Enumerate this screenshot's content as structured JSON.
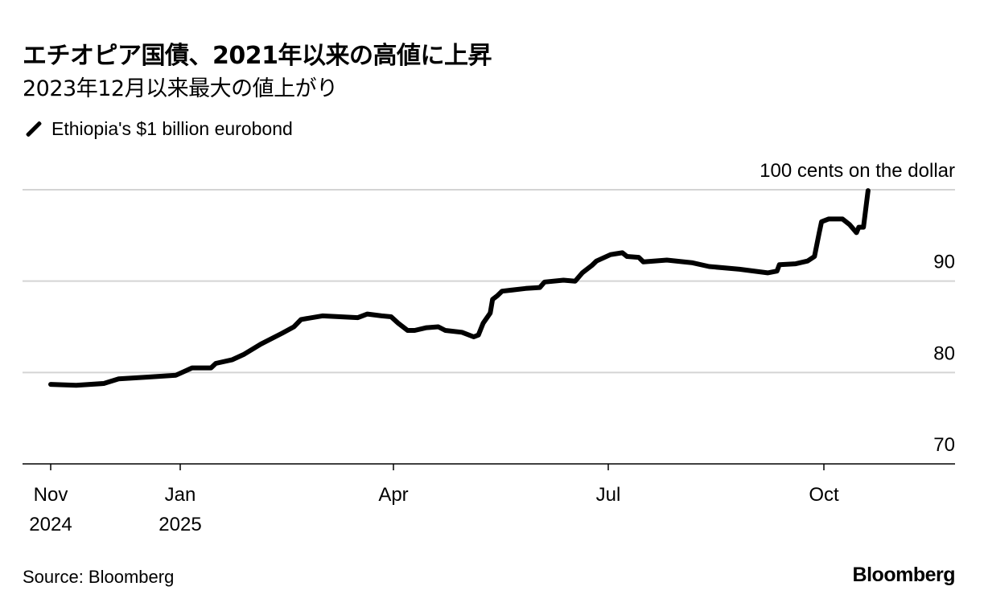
{
  "title": "エチオピア国債、2021年以来の高値に上昇",
  "subtitle": "2023年12月以来最大の値上がり",
  "source": "Source: Bloomberg",
  "logo": "Bloomberg",
  "chart_data": {
    "type": "line",
    "title": "エチオピア国債、2021年以来の高値に上昇",
    "subtitle": "2023年12月以来最大の値上がり",
    "ylabel": "100 cents on the dollar",
    "ylim": [
      70,
      100
    ],
    "yticks": [
      {
        "value": 100,
        "label": "100 cents on the dollar"
      },
      {
        "value": 90,
        "label": "90"
      },
      {
        "value": 80,
        "label": "80"
      },
      {
        "value": 70,
        "label": "70"
      }
    ],
    "xticks": [
      {
        "date": "2024-11-01",
        "label": "Nov",
        "label2": "2024"
      },
      {
        "date": "2025-01-01",
        "label": "Jan",
        "label2": "2025"
      },
      {
        "date": "2025-04-01",
        "label": "Apr",
        "label2": ""
      },
      {
        "date": "2025-07-01",
        "label": "Jul",
        "label2": ""
      },
      {
        "date": "2025-10-01",
        "label": "Oct",
        "label2": ""
      }
    ],
    "grid": true,
    "legend_position": "top-left",
    "series": [
      {
        "name": "Ethiopia's $1 billion eurobond",
        "color": "#000000",
        "points": [
          [
            "2024-11-01",
            78.7
          ],
          [
            "2024-11-13",
            78.6
          ],
          [
            "2024-11-26",
            78.8
          ],
          [
            "2024-12-03",
            79.3
          ],
          [
            "2024-12-17",
            79.5
          ],
          [
            "2024-12-30",
            79.7
          ],
          [
            "2025-01-06",
            80.5
          ],
          [
            "2025-01-14",
            80.5
          ],
          [
            "2025-01-16",
            81.0
          ],
          [
            "2025-01-23",
            81.4
          ],
          [
            "2025-01-28",
            82.0
          ],
          [
            "2025-02-04",
            83.1
          ],
          [
            "2025-02-13",
            84.3
          ],
          [
            "2025-02-18",
            85.0
          ],
          [
            "2025-02-21",
            85.8
          ],
          [
            "2025-03-02",
            86.2
          ],
          [
            "2025-03-17",
            86.0
          ],
          [
            "2025-03-21",
            86.4
          ],
          [
            "2025-03-27",
            86.2
          ],
          [
            "2025-03-31",
            86.1
          ],
          [
            "2025-04-03",
            85.4
          ],
          [
            "2025-04-07",
            84.6
          ],
          [
            "2025-04-10",
            84.6
          ],
          [
            "2025-04-15",
            84.9
          ],
          [
            "2025-04-20",
            85.0
          ],
          [
            "2025-04-23",
            84.6
          ],
          [
            "2025-04-30",
            84.4
          ],
          [
            "2025-05-05",
            83.9
          ],
          [
            "2025-05-07",
            84.1
          ],
          [
            "2025-05-09",
            85.4
          ],
          [
            "2025-05-12",
            86.5
          ],
          [
            "2025-05-13",
            88.0
          ],
          [
            "2025-05-15",
            88.4
          ],
          [
            "2025-05-17",
            88.9
          ],
          [
            "2025-05-27",
            89.2
          ],
          [
            "2025-06-02",
            89.3
          ],
          [
            "2025-06-04",
            89.9
          ],
          [
            "2025-06-12",
            90.1
          ],
          [
            "2025-06-17",
            90.0
          ],
          [
            "2025-06-20",
            90.9
          ],
          [
            "2025-06-24",
            91.7
          ],
          [
            "2025-06-26",
            92.2
          ],
          [
            "2025-07-02",
            92.9
          ],
          [
            "2025-07-07",
            93.1
          ],
          [
            "2025-07-09",
            92.7
          ],
          [
            "2025-07-14",
            92.6
          ],
          [
            "2025-07-16",
            92.1
          ],
          [
            "2025-07-26",
            92.3
          ],
          [
            "2025-08-06",
            92.0
          ],
          [
            "2025-08-13",
            91.6
          ],
          [
            "2025-08-26",
            91.3
          ],
          [
            "2025-09-07",
            90.9
          ],
          [
            "2025-09-11",
            91.1
          ],
          [
            "2025-09-12",
            91.8
          ],
          [
            "2025-09-19",
            91.9
          ],
          [
            "2025-09-24",
            92.2
          ],
          [
            "2025-09-27",
            92.7
          ],
          [
            "2025-09-29",
            95.3
          ],
          [
            "2025-09-30",
            96.5
          ],
          [
            "2025-10-03",
            96.8
          ],
          [
            "2025-10-09",
            96.8
          ],
          [
            "2025-10-12",
            96.2
          ],
          [
            "2025-10-15",
            95.3
          ],
          [
            "2025-10-16",
            95.9
          ],
          [
            "2025-10-18",
            95.9
          ],
          [
            "2025-10-20",
            99.9
          ]
        ]
      }
    ]
  }
}
